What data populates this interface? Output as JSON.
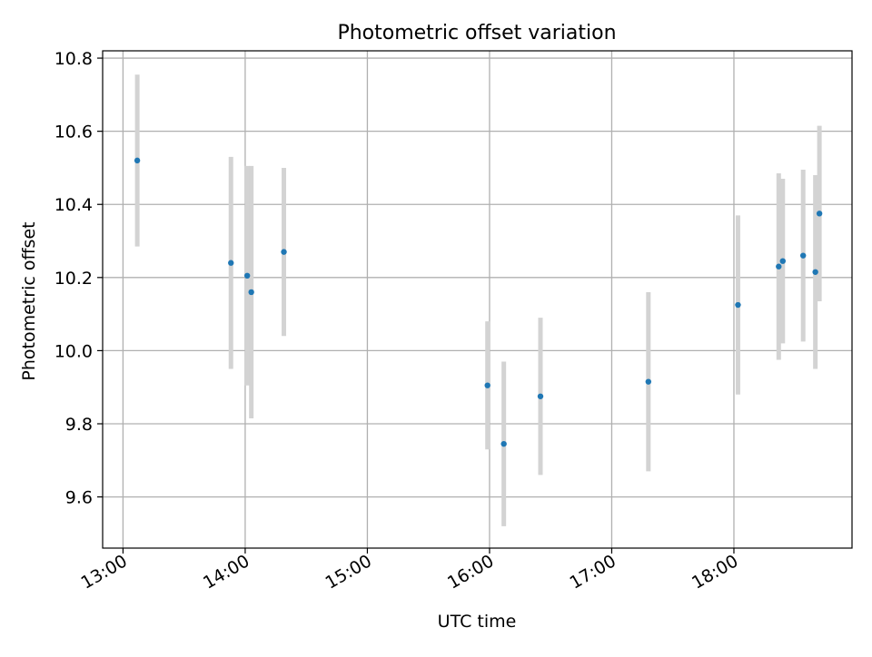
{
  "chart_data": {
    "type": "scatter",
    "title": "Photometric offset variation",
    "xlabel": "UTC time",
    "ylabel": "Photometric offset",
    "x_ticks": [
      "13:00",
      "14:00",
      "15:00",
      "16:00",
      "17:00",
      "18:00"
    ],
    "y_ticks": [
      "9.6",
      "9.8",
      "10.0",
      "10.2",
      "10.4",
      "10.6",
      "10.8"
    ],
    "xlim": [
      "12:50",
      "18:58"
    ],
    "ylim": [
      9.46,
      10.82
    ],
    "grid": true,
    "series": [
      {
        "color": "#1f77b4",
        "error_color": "#d3d3d3",
        "points": [
          {
            "x": "13:07",
            "y": 10.52,
            "err": 0.235
          },
          {
            "x": "13:53",
            "y": 10.24,
            "err": 0.29
          },
          {
            "x": "14:01",
            "y": 10.205,
            "err": 0.3
          },
          {
            "x": "14:03",
            "y": 10.16,
            "err": 0.345
          },
          {
            "x": "14:19",
            "y": 10.27,
            "err": 0.23
          },
          {
            "x": "15:59",
            "y": 9.905,
            "err": 0.175
          },
          {
            "x": "16:07",
            "y": 9.745,
            "err": 0.225
          },
          {
            "x": "16:25",
            "y": 9.875,
            "err": 0.215
          },
          {
            "x": "17:18",
            "y": 9.915,
            "err": 0.245
          },
          {
            "x": "18:02",
            "y": 10.125,
            "err": 0.245
          },
          {
            "x": "18:22",
            "y": 10.23,
            "err": 0.255
          },
          {
            "x": "18:24",
            "y": 10.245,
            "err": 0.225
          },
          {
            "x": "18:34",
            "y": 10.26,
            "err": 0.235
          },
          {
            "x": "18:40",
            "y": 10.215,
            "err": 0.265
          },
          {
            "x": "18:42",
            "y": 10.375,
            "err": 0.24
          }
        ]
      }
    ]
  }
}
